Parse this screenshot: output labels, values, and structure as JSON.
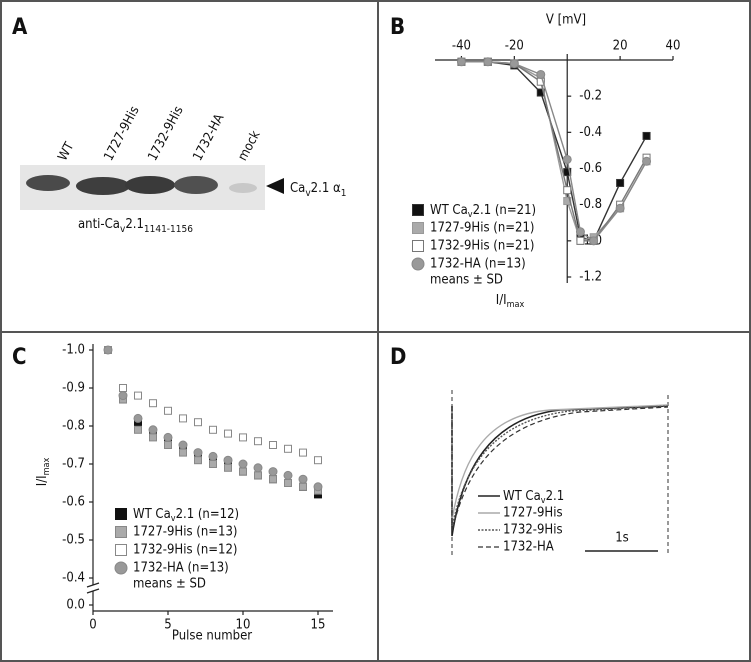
{
  "panels": {
    "a": {
      "letter": "A",
      "lanes": [
        "WT",
        "1727-9His",
        "1732-9His",
        "1732-HA",
        "mock"
      ],
      "band_label": [
        "Ca",
        "v",
        "2.1 α",
        "1"
      ],
      "antibody": [
        "anti-Ca",
        "v",
        "2.1",
        "1141-1156"
      ]
    },
    "b": {
      "letter": "B"
    },
    "c": {
      "letter": "C"
    },
    "d": {
      "letter": "D",
      "legend": [
        "WT Cav2.1",
        "1727-9His",
        "1732-9His",
        "1732-HA"
      ],
      "scale_bar": "1s"
    }
  },
  "chart_data": [
    {
      "type": "line",
      "x_label": "V [mV]",
      "y_label": "I/Imax",
      "note": "means ± SD",
      "x": [
        -40,
        -30,
        -20,
        -10,
        0,
        5,
        10,
        20,
        30
      ],
      "xlim": [
        -50,
        40
      ],
      "xticks": [
        -40,
        -20,
        20,
        40
      ],
      "ylim": [
        0,
        -1.2
      ],
      "yticks": [
        -0.2,
        -0.4,
        -0.6,
        -0.8,
        {
          "value": -1,
          "label": "-1.0"
        },
        -1.2
      ],
      "series": [
        {
          "name": "WT Cav2.1 (n=21)",
          "color": "#333333",
          "fill": "#111111",
          "marker": "square",
          "values": [
            -0.01,
            -0.01,
            -0.03,
            -0.18,
            -0.62,
            -0.98,
            -1.0,
            -0.68,
            -0.42
          ]
        },
        {
          "name": "1727-9His (n=21)",
          "color": "#999999",
          "fill": "#aaaaaa",
          "marker": "square",
          "values": [
            -0.01,
            -0.01,
            -0.02,
            -0.1,
            -0.78,
            -1.0,
            -0.98,
            -0.82,
            -0.56
          ]
        },
        {
          "name": "1732-9His (n=21)",
          "color": "#777777",
          "fill": "#ffffff",
          "marker": "square",
          "values": [
            -0.01,
            -0.01,
            -0.02,
            -0.12,
            -0.72,
            -1.0,
            -1.0,
            -0.8,
            -0.54
          ]
        },
        {
          "name": "1732-HA (n=13)",
          "color": "#888888",
          "fill": "#999999",
          "marker": "circle",
          "values": [
            -0.01,
            -0.01,
            -0.02,
            -0.08,
            -0.55,
            -0.95,
            -1.0,
            -0.82,
            -0.56
          ]
        }
      ]
    },
    {
      "type": "scatter",
      "x_label": "Pulse number",
      "y_label": "I/Imax",
      "note": "means ± SD",
      "x": [
        1,
        2,
        3,
        4,
        5,
        6,
        7,
        8,
        9,
        10,
        11,
        12,
        13,
        14,
        15
      ],
      "xlim": [
        0,
        16
      ],
      "xticks": [
        0,
        5,
        10,
        15
      ],
      "ylim": [
        0,
        -1.0
      ],
      "y_break": [
        0,
        -0.4
      ],
      "yticks": [
        {
          "value": 0,
          "label": "0.0"
        },
        -0.4,
        -0.5,
        -0.6,
        -0.7,
        -0.8,
        -0.9,
        {
          "value": -1,
          "label": "-1.0"
        }
      ],
      "series": [
        {
          "name": "WT Cav2.1 (n=12)",
          "color": "#111111",
          "fill": "#111111",
          "marker": "square",
          "values": [
            -1.0,
            -0.87,
            -0.81,
            -0.78,
            -0.76,
            -0.74,
            -0.72,
            -0.71,
            -0.7,
            -0.68,
            -0.67,
            -0.66,
            -0.65,
            -0.64,
            -0.62
          ]
        },
        {
          "name": "1727-9His (n=13)",
          "color": "#888888",
          "fill": "#aaaaaa",
          "marker": "square",
          "values": [
            -1.0,
            -0.87,
            -0.79,
            -0.77,
            -0.75,
            -0.73,
            -0.71,
            -0.7,
            -0.69,
            -0.68,
            -0.67,
            -0.66,
            -0.65,
            -0.64,
            -0.63
          ]
        },
        {
          "name": "1732-9His (n=12)",
          "color": "#888888",
          "fill": "#ffffff",
          "marker": "square",
          "values": [
            -1.0,
            -0.9,
            -0.88,
            -0.86,
            -0.84,
            -0.82,
            -0.81,
            -0.79,
            -0.78,
            -0.77,
            -0.76,
            -0.75,
            -0.74,
            -0.73,
            -0.71
          ]
        },
        {
          "name": "1732-HA (n=13)",
          "color": "#888888",
          "fill": "#999999",
          "marker": "circle",
          "values": [
            -1.0,
            -0.88,
            -0.82,
            -0.79,
            -0.77,
            -0.75,
            -0.73,
            -0.72,
            -0.71,
            -0.7,
            -0.69,
            -0.68,
            -0.67,
            -0.66,
            -0.64
          ]
        }
      ]
    }
  ]
}
